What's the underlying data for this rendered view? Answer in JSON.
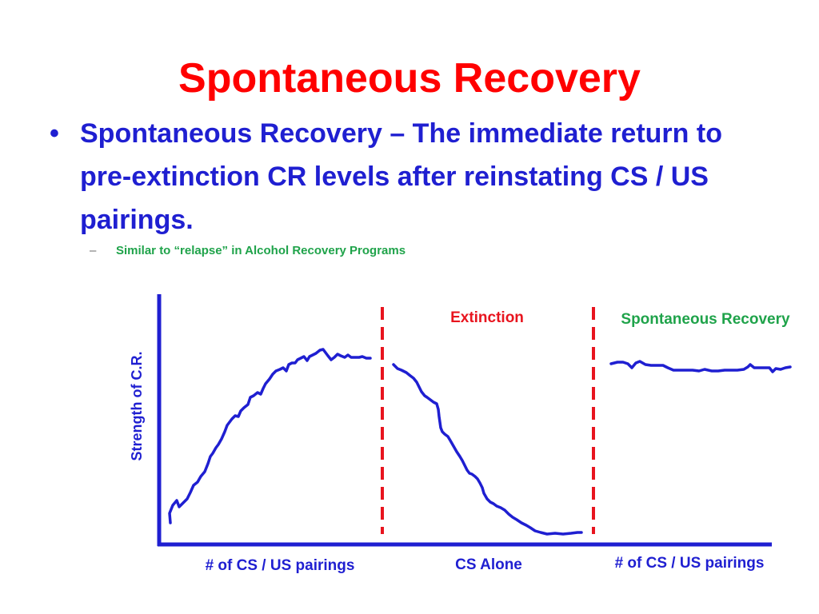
{
  "slide": {
    "title": "Spontaneous Recovery",
    "bullet": "Spontaneous Recovery – The immediate return to pre-extinction CR levels after reinstating CS / US pairings.",
    "sub_bullet_marker": "–",
    "sub_bullet": "Similar to “relapse” in Alcohol Recovery Programs"
  },
  "diagram": {
    "y_axis_label": "Strength of C.R.",
    "phases": [
      {
        "x_label": "# of CS / US pairings",
        "header": ""
      },
      {
        "x_label": "CS Alone",
        "header": "Extinction"
      },
      {
        "x_label": "# of CS / US pairings",
        "header": "Spontaneous Recovery"
      }
    ],
    "colors": {
      "title": "#ff0000",
      "bullet": "#1f1fd1",
      "sub_bullet": "#1fa34a",
      "axis": "#1f1fd1",
      "curve": "#1f1fd1",
      "divider": "#e8141e",
      "extinction_header": "#e8141e",
      "recovery_header": "#1fa34a"
    }
  }
}
